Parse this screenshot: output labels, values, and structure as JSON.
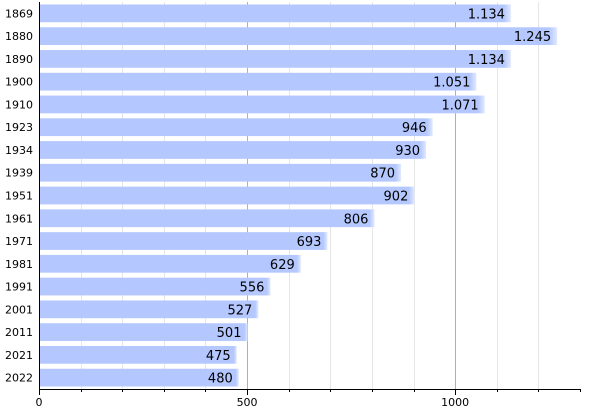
{
  "chart_data": {
    "type": "bar",
    "orientation": "horizontal",
    "categories": [
      "1869",
      "1880",
      "1890",
      "1900",
      "1910",
      "1923",
      "1934",
      "1939",
      "1951",
      "1961",
      "1971",
      "1981",
      "1991",
      "2001",
      "2011",
      "2021",
      "2022"
    ],
    "values": [
      1134,
      1245,
      1134,
      1051,
      1071,
      946,
      930,
      870,
      902,
      806,
      693,
      629,
      556,
      527,
      501,
      475,
      480
    ],
    "value_labels": [
      "1.134",
      "1.245",
      "1.134",
      "1.051",
      "1.071",
      "946",
      "930",
      "870",
      "902",
      "806",
      "693",
      "629",
      "556",
      "527",
      "501",
      "475",
      "480"
    ],
    "xlim": [
      0,
      1300
    ],
    "x_ticks": [
      0,
      500,
      1000
    ],
    "x_tick_labels": [
      "0",
      "500",
      "1000"
    ],
    "minor_grid_step": 100,
    "grid": true,
    "title": "",
    "xlabel": "",
    "ylabel": "",
    "colors": {
      "bar": "#b4c8ff",
      "bar_edge": "#dfe7ff",
      "major_grid": "#b0b0b0",
      "minor_grid": "#e6e6e6",
      "axis": "#000000"
    }
  }
}
